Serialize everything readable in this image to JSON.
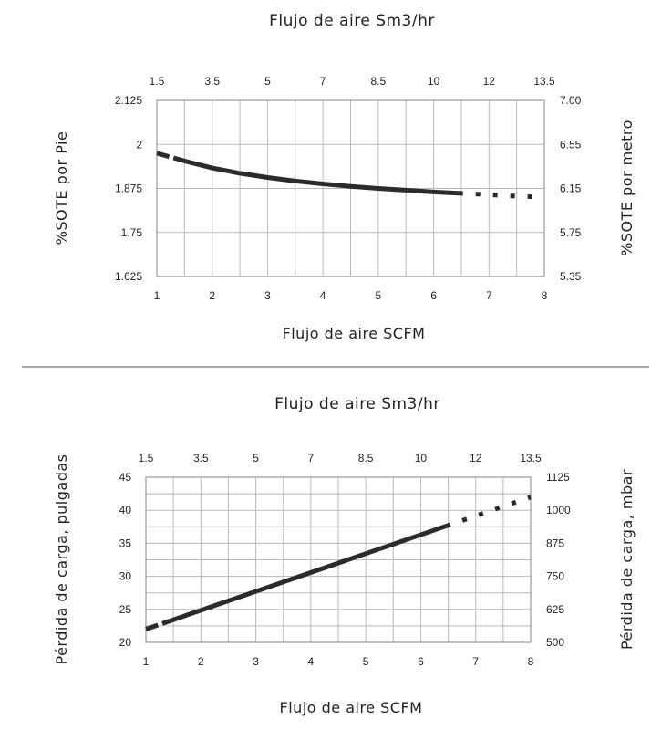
{
  "chart_data": [
    {
      "type": "line",
      "x_top_label": "Flujo de aire Sm3/hr",
      "x_bottom_label": "Flujo de aire SCFM",
      "y_left_label": "%SOTE por Pie",
      "y_right_label": "%SOTE por metro",
      "x_ticks": [
        "1",
        "2",
        "3",
        "4",
        "5",
        "6",
        "7",
        "8"
      ],
      "x_top_ticks": [
        "1.5",
        "3.5",
        "5",
        "7",
        "8.5",
        "10",
        "12",
        "13.5"
      ],
      "y_ticks": [
        "1.625",
        "1.75",
        "1.875",
        "2",
        "2.125"
      ],
      "y_right_ticks": [
        "5.35",
        "5.75",
        "6.15",
        "6.55",
        "7.00"
      ],
      "xlim": [
        1,
        8
      ],
      "ylim": [
        1.625,
        2.125
      ],
      "grid": true,
      "series": [
        {
          "x": [
            1,
            1.5,
            2,
            2.5,
            3,
            3.5,
            4,
            4.5,
            5,
            5.5,
            6,
            6.5,
            7,
            7.5,
            8
          ],
          "y": [
            1.975,
            1.953,
            1.933,
            1.918,
            1.906,
            1.896,
            1.888,
            1.881,
            1.875,
            1.87,
            1.865,
            1.861,
            1.857,
            1.853,
            1.85
          ]
        }
      ]
    },
    {
      "type": "line",
      "x_top_label": "Flujo de aire Sm3/hr",
      "x_bottom_label": "Flujo de aire SCFM",
      "y_left_label": "Pérdida de carga, pulgadas",
      "y_right_label": "Pérdida de carga, mbar",
      "x_ticks": [
        "1",
        "2",
        "3",
        "4",
        "5",
        "6",
        "7",
        "8"
      ],
      "x_top_ticks": [
        "1.5",
        "3.5",
        "5",
        "7",
        "8.5",
        "10",
        "12",
        "13.5"
      ],
      "y_ticks": [
        "20",
        "25",
        "30",
        "35",
        "40",
        "45"
      ],
      "y_right_ticks": [
        "500",
        "625",
        "750",
        "875",
        "1000",
        "1125"
      ],
      "xlim": [
        1,
        8
      ],
      "ylim": [
        20,
        45
      ],
      "grid": true,
      "series": [
        {
          "x": [
            1,
            8
          ],
          "y": [
            22,
            42
          ]
        }
      ]
    }
  ]
}
